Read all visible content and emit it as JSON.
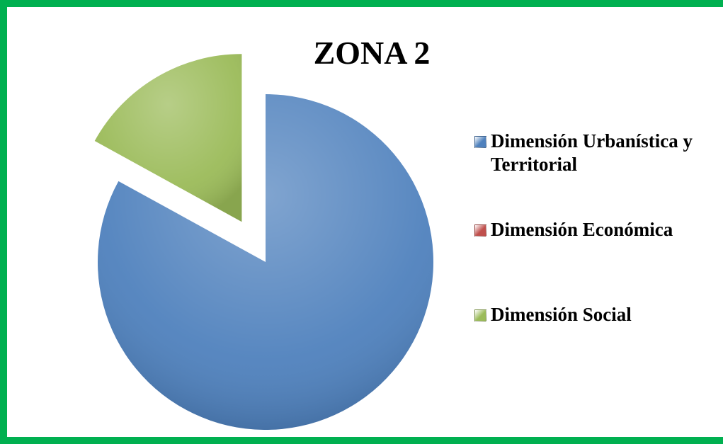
{
  "chart_data": {
    "type": "pie",
    "title": "ZONA 2",
    "categories": [
      "Dimensión Urbanística y Territorial",
      "Dimensión Económica",
      "Dimensión Social"
    ],
    "values": [
      83,
      0,
      17
    ],
    "colors": [
      "#4f81bd",
      "#c0504d",
      "#9bbb59"
    ],
    "legend": "right"
  }
}
